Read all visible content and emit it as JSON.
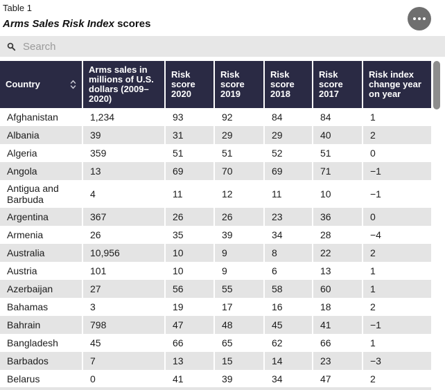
{
  "chart_data": {
    "type": "table",
    "table_label": "Table 1",
    "title_italic": "Arms Sales Risk Index",
    "title_suffix": " scores",
    "columns": [
      "Country",
      "Arms sales in millions of U.S. dollars (2009–2020)",
      "Risk score 2020",
      "Risk score 2019",
      "Risk score 2018",
      "Risk score 2017",
      "Risk index change year on year"
    ],
    "rows": [
      [
        "Afghanistan",
        "1,234",
        "93",
        "92",
        "84",
        "84",
        "1"
      ],
      [
        "Albania",
        "39",
        "31",
        "29",
        "29",
        "40",
        "2"
      ],
      [
        "Algeria",
        "359",
        "51",
        "51",
        "52",
        "51",
        "0"
      ],
      [
        "Angola",
        "13",
        "69",
        "70",
        "69",
        "71",
        "−1"
      ],
      [
        "Antigua and Barbuda",
        "4",
        "11",
        "12",
        "11",
        "10",
        "−1"
      ],
      [
        "Argentina",
        "367",
        "26",
        "26",
        "23",
        "36",
        "0"
      ],
      [
        "Armenia",
        "26",
        "35",
        "39",
        "34",
        "28",
        "−4"
      ],
      [
        "Australia",
        "10,956",
        "10",
        "9",
        "8",
        "22",
        "2"
      ],
      [
        "Austria",
        "101",
        "10",
        "9",
        "6",
        "13",
        "1"
      ],
      [
        "Azerbaijan",
        "27",
        "56",
        "55",
        "58",
        "60",
        "1"
      ],
      [
        "Bahamas",
        "3",
        "19",
        "17",
        "16",
        "18",
        "2"
      ],
      [
        "Bahrain",
        "798",
        "47",
        "48",
        "45",
        "41",
        "−1"
      ],
      [
        "Bangladesh",
        "45",
        "66",
        "65",
        "62",
        "66",
        "1"
      ],
      [
        "Barbados",
        "7",
        "13",
        "15",
        "14",
        "23",
        "−3"
      ],
      [
        "Belarus",
        "0",
        "41",
        "39",
        "34",
        "47",
        "2"
      ]
    ]
  },
  "search": {
    "placeholder": "Search"
  },
  "icons": {
    "menu": "ellipsis-icon",
    "search": "search-icon",
    "country_sort": "sort-icon"
  },
  "colors": {
    "header_bg": "#2a2a44",
    "header_text": "#ffffff",
    "alt_row_bg": "#e4e4e4",
    "body_text": "#1c1c1c",
    "search_bg": "#e7e7e7",
    "menu_button": "#6f6f6f",
    "scrollbar_thumb": "#8d8d8d"
  }
}
